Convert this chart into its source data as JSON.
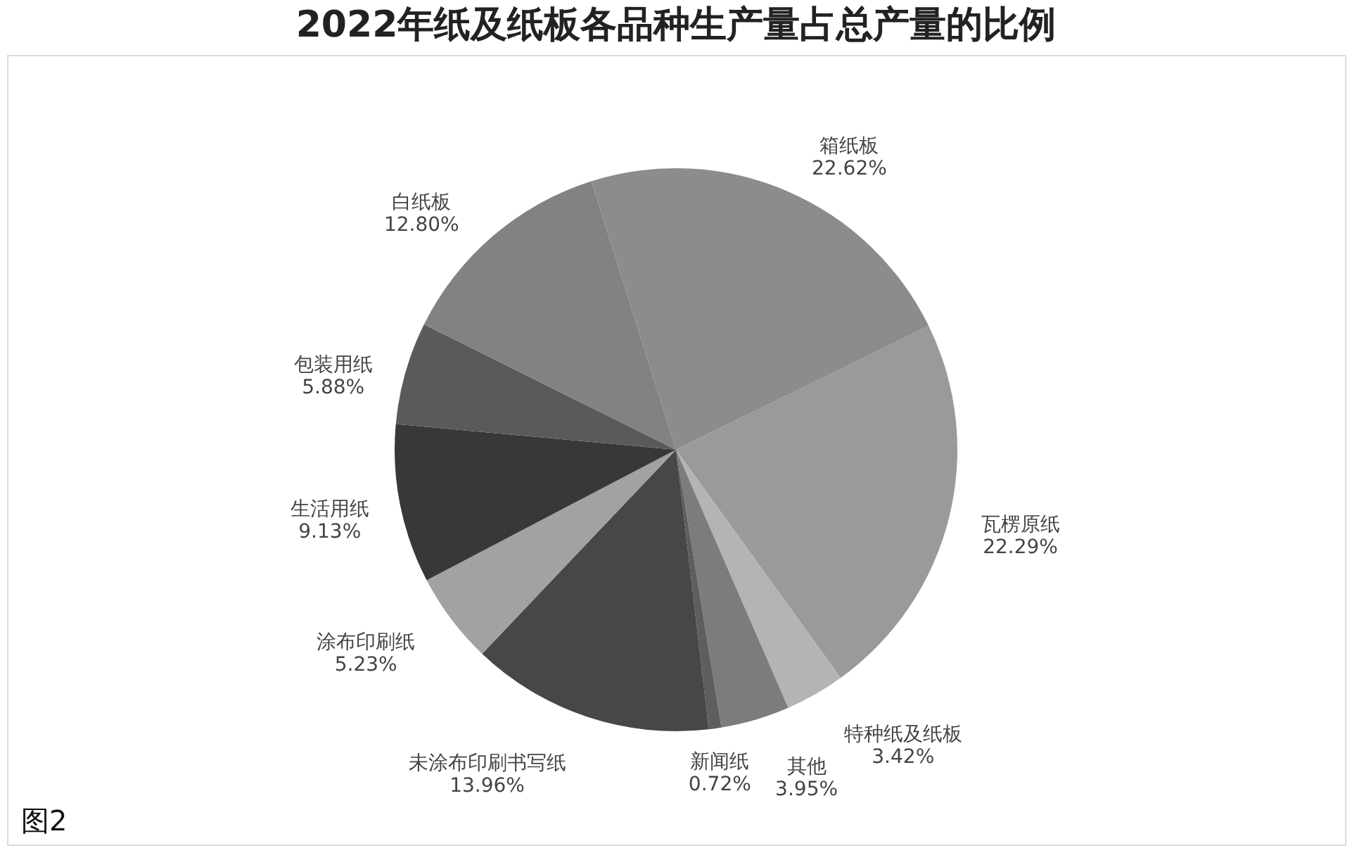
{
  "chart_data": {
    "type": "pie",
    "title": "2022年纸及纸板各品种生产量占总产量的比例",
    "categories": [
      "箱纸板",
      "瓦楞原纸",
      "特种纸及纸板",
      "其他",
      "新闻纸",
      "未涂布印刷书写纸",
      "涂布印刷纸",
      "生活用纸",
      "包装用纸",
      "白纸板"
    ],
    "values": [
      22.62,
      22.29,
      3.42,
      3.95,
      0.72,
      13.96,
      5.23,
      9.13,
      5.88,
      12.8
    ],
    "value_labels": [
      "22.62%",
      "22.29%",
      "3.42%",
      "3.95%",
      "0.72%",
      "13.96%",
      "5.23%",
      "9.13%",
      "5.88%",
      "12.80%"
    ],
    "colors": [
      "#8c8c8c",
      "#9a9a9a",
      "#b4b4b4",
      "#7c7c7c",
      "#5e5e5e",
      "#474747",
      "#a2a2a2",
      "#383838",
      "#5a5a5a",
      "#828282"
    ],
    "annotations": [
      "图2"
    ]
  }
}
